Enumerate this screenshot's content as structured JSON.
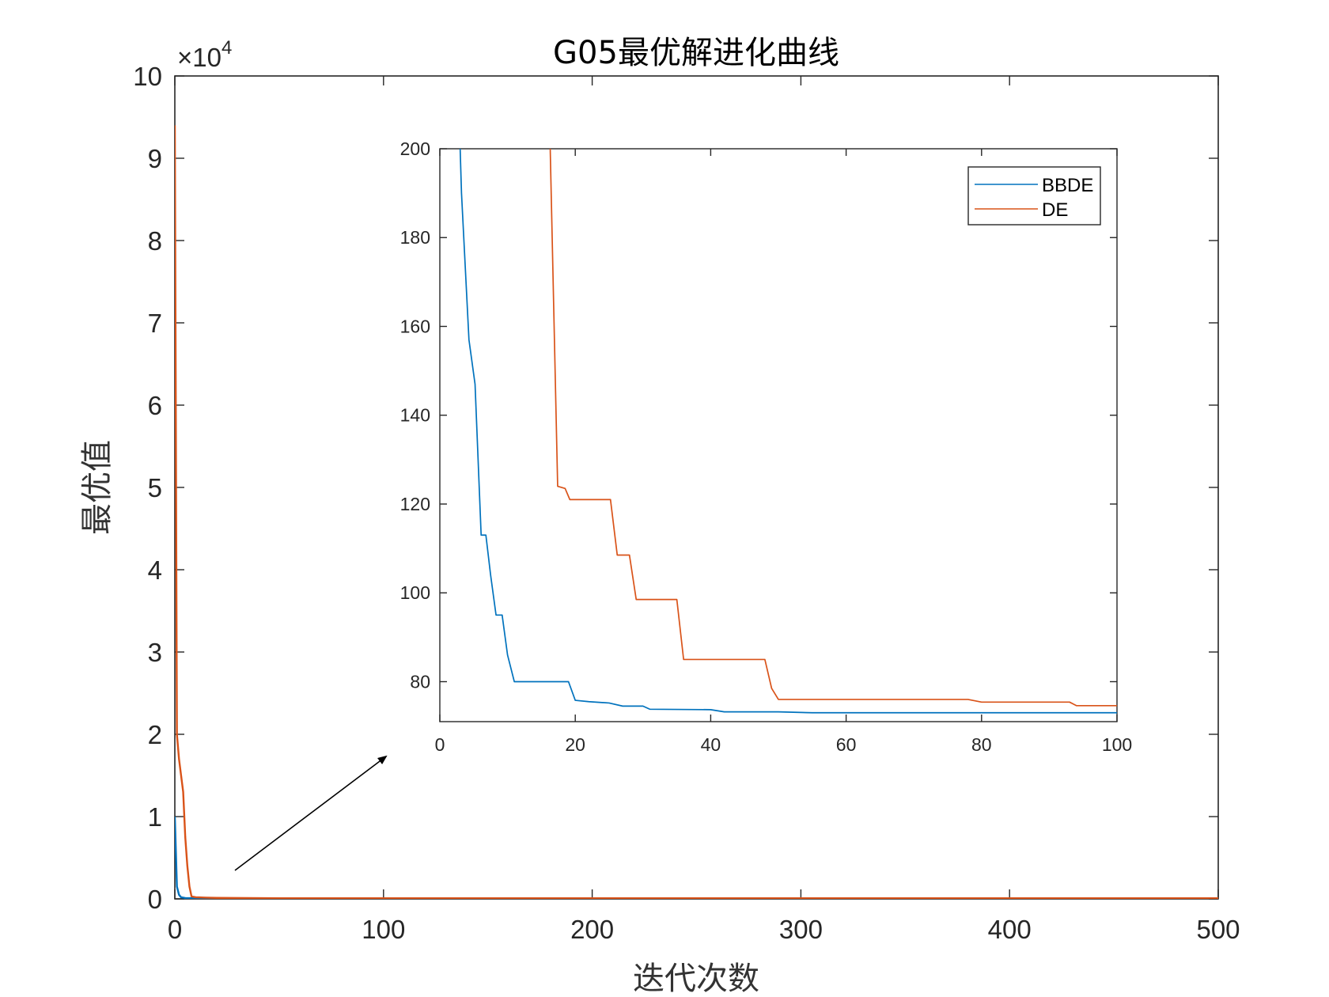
{
  "chart_data": [
    {
      "type": "line",
      "title": "G05最优解进化曲线",
      "xlabel": "迭代次数",
      "ylabel": "最优值",
      "y_multiplier": "×10",
      "y_exponent": "4",
      "xlim": [
        0,
        500
      ],
      "ylim": [
        0,
        10
      ],
      "xticks": [
        "0",
        "100",
        "200",
        "300",
        "400",
        "500"
      ],
      "yticks": [
        "0",
        "1",
        "2",
        "3",
        "4",
        "5",
        "6",
        "7",
        "8",
        "9",
        "10"
      ],
      "series": [
        {
          "name": "BBDE",
          "color": "#0072BD",
          "x": [
            0,
            1,
            2,
            3,
            5,
            10,
            20,
            50,
            100,
            500
          ],
          "y": [
            1.0,
            0.15,
            0.05,
            0.02,
            0.01,
            0.0078,
            0.0075,
            0.0073,
            0.0073,
            0.0073
          ]
        },
        {
          "name": "DE",
          "color": "#D95319",
          "x": [
            0,
            1,
            2,
            3,
            4,
            5,
            6,
            7,
            8,
            10,
            15,
            20,
            50,
            100,
            500
          ],
          "y": [
            9.4,
            2.0,
            1.7,
            1.5,
            1.3,
            0.75,
            0.4,
            0.15,
            0.03,
            0.02,
            0.015,
            0.012,
            0.0076,
            0.0074,
            0.0074
          ]
        }
      ]
    },
    {
      "type": "line",
      "role": "inset",
      "xlim": [
        0,
        100
      ],
      "ylim": [
        71,
        200
      ],
      "xticks": [
        "0",
        "20",
        "40",
        "60",
        "80",
        "100"
      ],
      "yticks": [
        "80",
        "100",
        "120",
        "140",
        "160",
        "180",
        "200"
      ],
      "legend_position": "top-right",
      "series": [
        {
          "name": "BBDE",
          "color": "#0072BD",
          "x": [
            3,
            3.2,
            4.3,
            5.2,
            6.1,
            6.8,
            7.5,
            8.3,
            9.2,
            10,
            11,
            19,
            20,
            22,
            25,
            27,
            30,
            31,
            40,
            42,
            50,
            55,
            100
          ],
          "y": [
            200,
            190,
            157,
            147,
            113,
            113,
            104,
            95,
            95,
            86,
            80,
            80,
            75.8,
            75.5,
            75.2,
            74.5,
            74.5,
            73.8,
            73.7,
            73.2,
            73.2,
            73.0,
            73.0
          ]
        },
        {
          "name": "DE",
          "color": "#D95319",
          "x": [
            16.3,
            17.4,
            18.5,
            19.2,
            25.2,
            26.2,
            28,
            29,
            35,
            36,
            48,
            49,
            50,
            78,
            80,
            93,
            94,
            100
          ],
          "y": [
            200,
            124,
            123.5,
            121,
            121,
            108.5,
            108.5,
            98.5,
            98.5,
            85,
            85,
            78.5,
            76,
            76,
            75.4,
            75.4,
            74.6,
            74.6
          ]
        }
      ]
    }
  ]
}
